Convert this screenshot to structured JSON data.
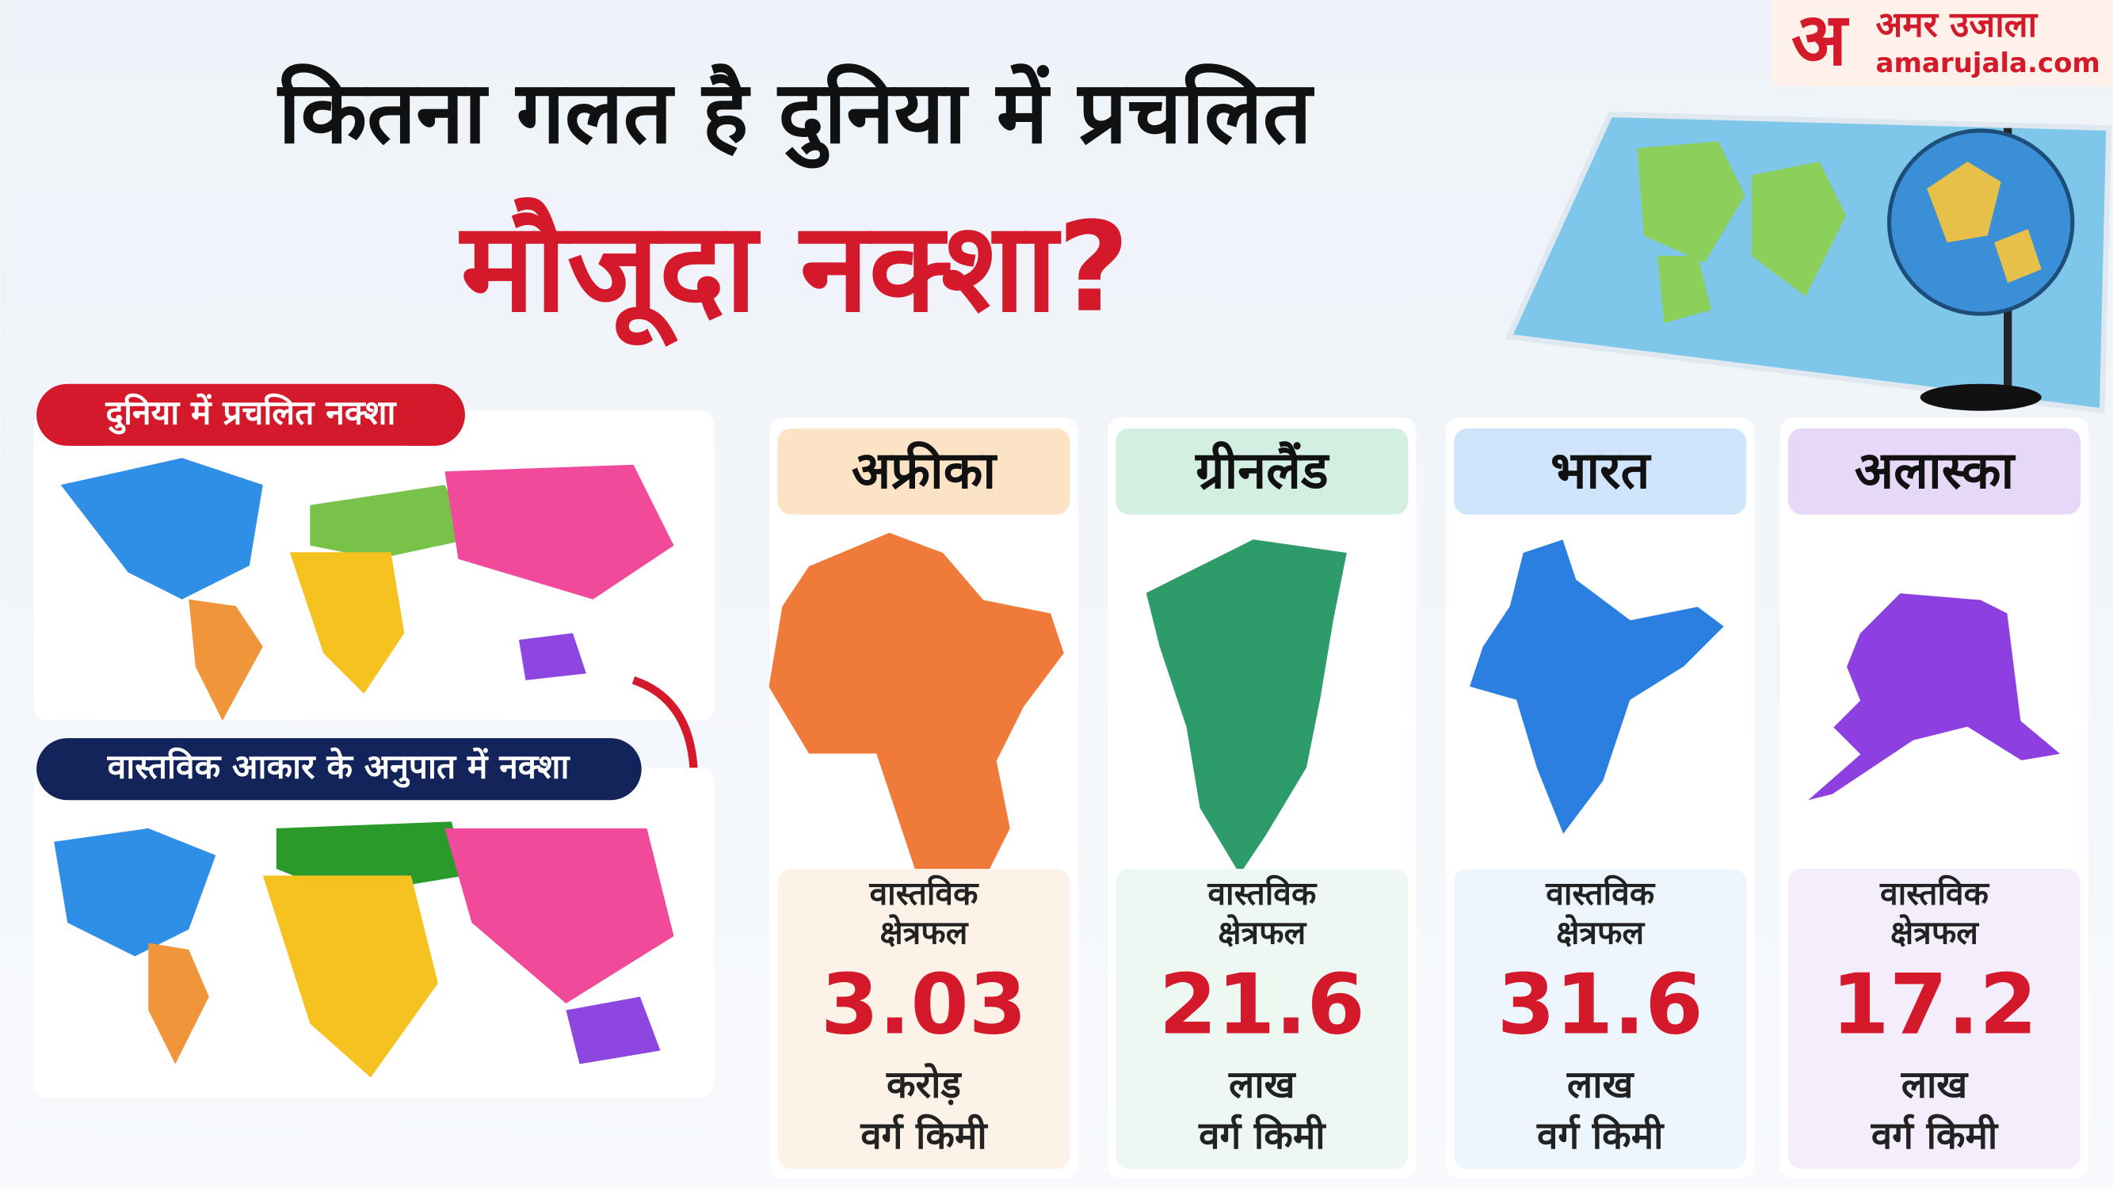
{
  "header": {
    "title_line1": "कितना गलत है दुनिया में प्रचलित",
    "title_line2": "मौजूदा नक्शा?"
  },
  "logo": {
    "mark": "अ",
    "name": "अमर उजाला",
    "site": "amarujala.com"
  },
  "maps": {
    "current_label": "दुनिया में प्रचलित नक्शा",
    "true_label": "वास्तविक आकार के अनुपात में नक्शा"
  },
  "cards": [
    {
      "name": "अफ्रीका",
      "caption_line1": "वास्तविक",
      "caption_line2": "क्षेत्रफल",
      "value": 3.03,
      "unit_line1": "करोड़",
      "unit_line2": "वर्ग किमी"
    },
    {
      "name": "ग्रीनलैंड",
      "caption_line1": "वास्तविक",
      "caption_line2": "क्षेत्रफल",
      "value": 21.6,
      "unit_line1": "लाख",
      "unit_line2": "वर्ग किमी"
    },
    {
      "name": "भारत",
      "caption_line1": "वास्तविक",
      "caption_line2": "क्षेत्रफल",
      "value": 31.6,
      "unit_line1": "लाख",
      "unit_line2": "वर्ग किमी"
    },
    {
      "name": "अलास्का",
      "caption_line1": "वास्तविक",
      "caption_line2": "क्षेत्रफल",
      "value": 17.2,
      "unit_line1": "लाख",
      "unit_line2": "वर्ग किमी"
    }
  ]
}
